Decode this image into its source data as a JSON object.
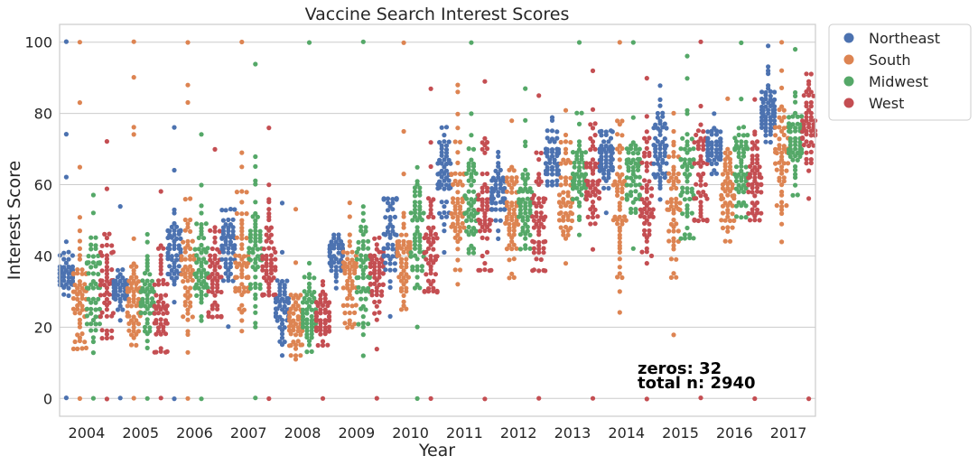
{
  "chart_data": {
    "type": "scatter",
    "subtype": "swarm",
    "title": "Vaccine Search Interest Scores",
    "xlabel": "Year",
    "ylabel": "Interest Score",
    "categories": [
      "2004",
      "2005",
      "2006",
      "2007",
      "2008",
      "2009",
      "2010",
      "2011",
      "2012",
      "2013",
      "2014",
      "2015",
      "2016",
      "2017"
    ],
    "yticks": [
      0,
      20,
      40,
      60,
      80,
      100
    ],
    "ylim": [
      -5,
      105
    ],
    "grid": "horizontal",
    "legend": {
      "placement": "outside-top-right"
    },
    "series": [
      {
        "name": "Northeast",
        "color": "#4c72b0",
        "median": [
          35,
          31,
          41,
          44,
          25,
          40,
          46,
          63,
          58,
          69,
          67,
          70,
          70,
          81
        ],
        "range": [
          [
            29,
            44
          ],
          [
            22,
            36
          ],
          [
            27,
            53
          ],
          [
            20,
            53
          ],
          [
            12,
            33
          ],
          [
            31,
            46
          ],
          [
            23,
            56
          ],
          [
            41,
            76
          ],
          [
            45,
            69
          ],
          [
            60,
            79
          ],
          [
            52,
            75
          ],
          [
            56,
            88
          ],
          [
            63,
            80
          ],
          [
            72,
            93
          ]
        ],
        "outliers": [
          [
            62,
            74,
            100,
            0
          ],
          [
            54,
            0
          ],
          [
            64,
            76,
            0
          ],
          [],
          [
            41,
            55
          ],
          [],
          [],
          [],
          [],
          [],
          [],
          [],
          [],
          [
            99
          ]
        ]
      },
      {
        "name": "South",
        "color": "#dd8452",
        "median": [
          28,
          26,
          36,
          40,
          21,
          33,
          40,
          55,
          52,
          60,
          57,
          54,
          60,
          68
        ],
        "range": [
          [
            14,
            51
          ],
          [
            15,
            45
          ],
          [
            13,
            56
          ],
          [
            19,
            58
          ],
          [
            11,
            38
          ],
          [
            20,
            55
          ],
          [
            25,
            63
          ],
          [
            32,
            80
          ],
          [
            34,
            78
          ],
          [
            38,
            81
          ],
          [
            24,
            78
          ],
          [
            18,
            80
          ],
          [
            44,
            84
          ],
          [
            44,
            92
          ]
        ],
        "outliers": [
          [
            65,
            83,
            100,
            0
          ],
          [
            74,
            76,
            90,
            100,
            0
          ],
          [
            83,
            88,
            100,
            0
          ],
          [
            65,
            69,
            100
          ],
          [
            53
          ],
          [],
          [
            75,
            100
          ],
          [
            86,
            88
          ],
          [],
          [],
          [
            100
          ],
          [],
          [],
          [
            100
          ]
        ]
      },
      {
        "name": "Midwest",
        "color": "#55a868",
        "median": [
          33,
          29,
          37,
          41,
          24,
          36,
          47,
          56,
          55,
          64,
          62,
          62,
          65,
          73
        ],
        "range": [
          [
            13,
            57
          ],
          [
            14,
            46
          ],
          [
            22,
            60
          ],
          [
            20,
            68
          ],
          [
            13,
            38
          ],
          [
            12,
            54
          ],
          [
            20,
            65
          ],
          [
            41,
            80
          ],
          [
            42,
            78
          ],
          [
            46,
            80
          ],
          [
            42,
            79
          ],
          [
            45,
            90
          ],
          [
            51,
            84
          ],
          [
            57,
            86
          ]
        ],
        "outliers": [
          [
            0
          ],
          [
            0
          ],
          [
            0,
            74
          ],
          [
            94,
            0
          ],
          [
            100
          ],
          [
            100
          ],
          [
            0
          ],
          [
            100
          ],
          [
            87
          ],
          [
            100
          ],
          [
            100
          ],
          [
            96
          ],
          [
            100
          ],
          [
            98
          ]
        ]
      },
      {
        "name": "West",
        "color": "#c44e52",
        "median": [
          31,
          27,
          32,
          40,
          23,
          35,
          43,
          55,
          50,
          60,
          59,
          60,
          61,
          77
        ],
        "range": [
          [
            17,
            59
          ],
          [
            13,
            58
          ],
          [
            23,
            70
          ],
          [
            29,
            76
          ],
          [
            15,
            33
          ],
          [
            14,
            45
          ],
          [
            30,
            87
          ],
          [
            36,
            89
          ],
          [
            36,
            85
          ],
          [
            42,
            92
          ],
          [
            38,
            90
          ],
          [
            50,
            100
          ],
          [
            50,
            84
          ],
          [
            56,
            91
          ]
        ],
        "outliers": [
          [
            72,
            0
          ],
          [
            0
          ],
          [],
          [
            0
          ],
          [
            0
          ],
          [
            0
          ],
          [
            0
          ],
          [
            0
          ],
          [
            0
          ],
          [
            0
          ],
          [
            0
          ],
          [
            0
          ],
          [
            0
          ],
          [
            0
          ]
        ]
      }
    ]
  },
  "annotations": {
    "zeros": "zeros: 32",
    "total": "total n: 2940"
  }
}
